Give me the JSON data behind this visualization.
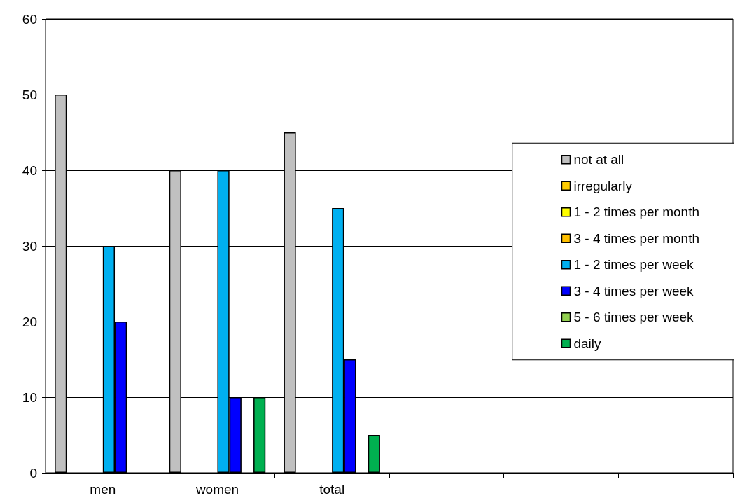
{
  "chart_data": {
    "type": "bar",
    "categories": [
      "men",
      "women",
      "total",
      null,
      null,
      null
    ],
    "series": [
      {
        "name": "not at all",
        "color": "#c0c0c0",
        "values": [
          50,
          40,
          45,
          null,
          null,
          null
        ]
      },
      {
        "name": "irregularly",
        "color": "#ffcc00",
        "values": [
          0,
          0,
          0,
          null,
          null,
          null
        ]
      },
      {
        "name": "1 - 2 times per month",
        "color": "#ffff00",
        "values": [
          0,
          0,
          0,
          null,
          null,
          null
        ]
      },
      {
        "name": "3 - 4 times per month",
        "color": "#ffc000",
        "values": [
          0,
          0,
          0,
          null,
          null,
          null
        ]
      },
      {
        "name": "1 - 2 times per week",
        "color": "#00b0f0",
        "values": [
          30,
          40,
          35,
          null,
          null,
          null
        ]
      },
      {
        "name": "3 - 4 times per week",
        "color": "#0000ff",
        "values": [
          20,
          10,
          15,
          null,
          null,
          null
        ]
      },
      {
        "name": "5 - 6 times per week",
        "color": "#92d050",
        "values": [
          0,
          0,
          0,
          null,
          null,
          null
        ]
      },
      {
        "name": "daily",
        "color": "#00b050",
        "values": [
          0,
          10,
          5,
          null,
          null,
          null
        ]
      }
    ],
    "ylim": [
      0,
      60
    ],
    "yticks": [
      0,
      10,
      20,
      30,
      40,
      50,
      60
    ],
    "grid": "y",
    "legend": "right"
  }
}
